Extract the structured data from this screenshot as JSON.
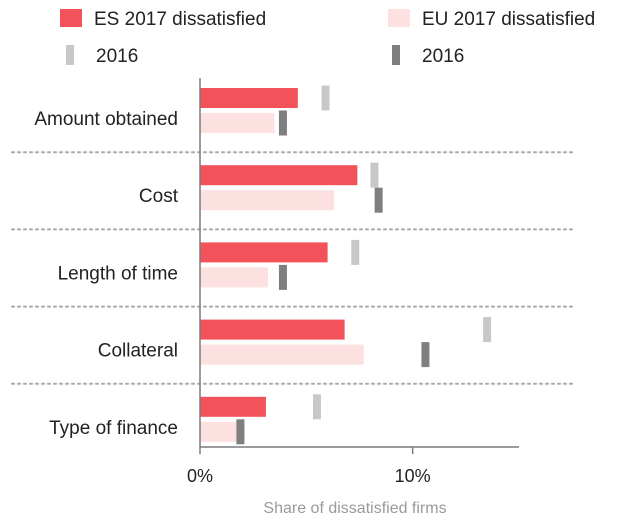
{
  "chart_data": {
    "type": "bar",
    "orientation": "horizontal",
    "categories": [
      "Amount obtained",
      "Cost",
      "Length of time",
      "Collateral",
      "Type of finance"
    ],
    "series": [
      {
        "name": "ES 2017 dissatisfied",
        "values": [
          4.6,
          7.4,
          6.0,
          6.8,
          3.1
        ],
        "color": "#f2535b",
        "mark": "bar"
      },
      {
        "name": "EU 2017 dissatisfied",
        "values": [
          3.5,
          6.3,
          3.2,
          7.7,
          1.9
        ],
        "color": "#fde0e0",
        "mark": "bar"
      }
    ],
    "markers": [
      {
        "name": "2016",
        "values": [
          5.9,
          8.2,
          7.3,
          13.5,
          5.5
        ],
        "color": "#c8c8c8",
        "paired_with": "ES 2017 dissatisfied"
      },
      {
        "name": "2016",
        "values": [
          3.9,
          8.4,
          3.9,
          10.6,
          1.9
        ],
        "color": "#7f7f7f",
        "paired_with": "EU 2017 dissatisfied"
      }
    ],
    "xlim": [
      0,
      15
    ],
    "xticks": [
      0,
      10
    ],
    "xtick_labels": [
      "0%",
      "10%"
    ],
    "xlabel": "Share of dissatisfied firms",
    "legend_placement": "top",
    "category_separators": "dotted"
  }
}
